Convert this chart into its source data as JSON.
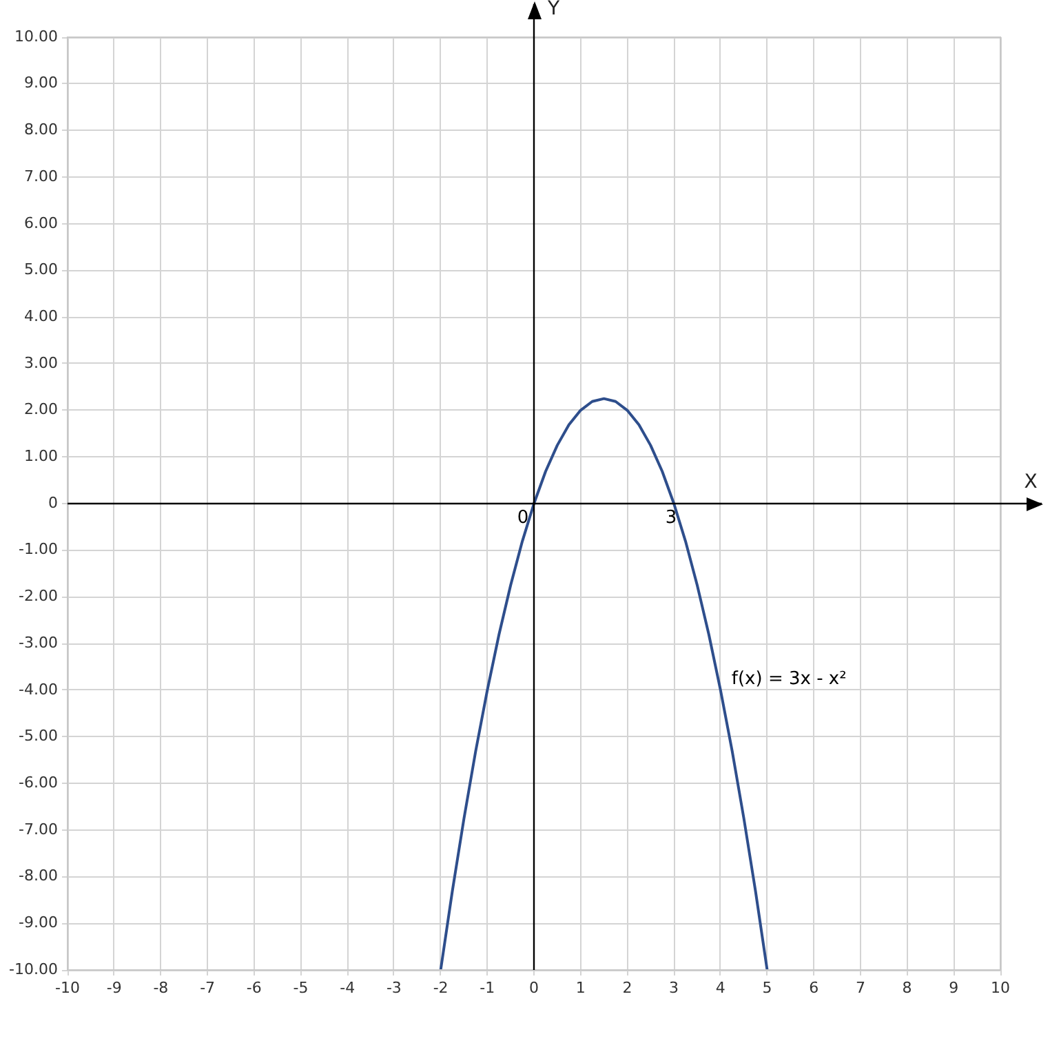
{
  "chart_data": {
    "type": "line",
    "xlabel": "X",
    "ylabel": "Y",
    "xlim": [
      -10,
      10
    ],
    "ylim": [
      -10,
      10
    ],
    "xticks": [
      -10,
      -9,
      -8,
      -7,
      -6,
      -5,
      -4,
      -3,
      -2,
      -1,
      0,
      1,
      2,
      3,
      4,
      5,
      6,
      7,
      8,
      9,
      10
    ],
    "yticks": [
      {
        "value": -10,
        "label": "-10.00"
      },
      {
        "value": -9,
        "label": "-9.00"
      },
      {
        "value": -8,
        "label": "-8.00"
      },
      {
        "value": -7,
        "label": "-7.00"
      },
      {
        "value": -6,
        "label": "-6.00"
      },
      {
        "value": -5,
        "label": "-5.00"
      },
      {
        "value": -4,
        "label": "-4.00"
      },
      {
        "value": -3,
        "label": "-3.00"
      },
      {
        "value": -2,
        "label": "-2.00"
      },
      {
        "value": -1,
        "label": "-1.00"
      },
      {
        "value": 0,
        "label": "0"
      },
      {
        "value": 1,
        "label": "1.00"
      },
      {
        "value": 2,
        "label": "2.00"
      },
      {
        "value": 3,
        "label": "3.00"
      },
      {
        "value": 4,
        "label": "4.00"
      },
      {
        "value": 5,
        "label": "5.00"
      },
      {
        "value": 6,
        "label": "6.00"
      },
      {
        "value": 7,
        "label": "7.00"
      },
      {
        "value": 8,
        "label": "8.00"
      },
      {
        "value": 9,
        "label": "9.00"
      },
      {
        "value": 10,
        "label": "10.00"
      }
    ],
    "grid": true,
    "legend": false,
    "marker": "none",
    "line_style": "solid",
    "series": [
      {
        "color": "#2e4e8c",
        "x": [
          -2,
          -1.75,
          -1.5,
          -1.25,
          -1,
          -0.75,
          -0.5,
          -0.25,
          0,
          0.25,
          0.5,
          0.75,
          1,
          1.25,
          1.5,
          1.75,
          2,
          2.25,
          2.5,
          2.75,
          3,
          3.25,
          3.5,
          3.75,
          4,
          4.25,
          4.5,
          4.75,
          5
        ],
        "values": [
          -10,
          -8.31,
          -6.75,
          -5.31,
          -4,
          -2.81,
          -1.75,
          -0.81,
          0,
          0.69,
          1.25,
          1.69,
          2,
          2.19,
          2.25,
          2.19,
          2,
          1.69,
          1.25,
          0.69,
          0,
          -0.81,
          -1.75,
          -2.81,
          -4,
          -5.31,
          -6.75,
          -8.31,
          -10
        ]
      }
    ],
    "annotations": [
      {
        "text": "0",
        "x": 0,
        "y": 0
      },
      {
        "text": "3",
        "x": 3,
        "y": 0
      },
      {
        "text": "f(x) = 3x - x²",
        "x": 4,
        "y": -4
      }
    ]
  }
}
